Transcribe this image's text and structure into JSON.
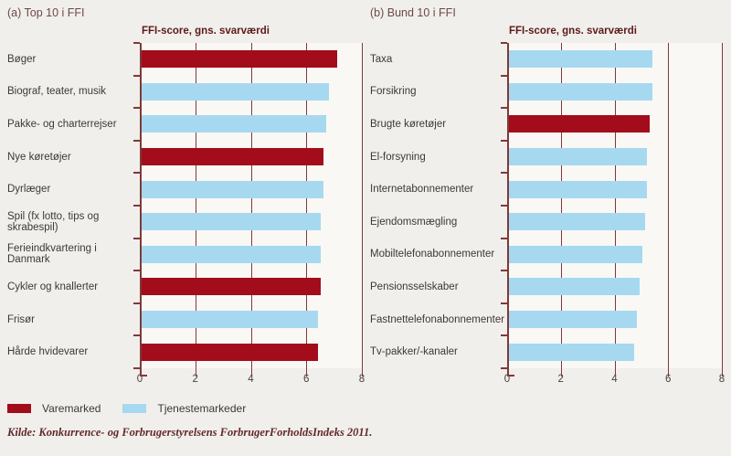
{
  "colors": {
    "vare": "#a20c1b",
    "tjeneste": "#a6d9ef",
    "grid": "#7e3a39",
    "page_background": "#f1efec",
    "plot_background": "#f9f8f5",
    "title_text": "#5c1a19"
  },
  "legend": {
    "items": [
      {
        "label": "Varemarked",
        "color_key": "vare"
      },
      {
        "label": "Tjenestemarkeder",
        "color_key": "tjeneste"
      }
    ]
  },
  "source": "Kilde: Konkurrence- og Forbrugerstyrelsens ForbrugerForholdsIndeks 2011.",
  "chart_data": [
    {
      "type": "bar",
      "orientation": "horizontal",
      "panel_label": "(a) Top 10 i FFI",
      "title": "FFI-score, gns. svarværdi",
      "xlim": [
        0,
        8
      ],
      "xticks": [
        0,
        2,
        4,
        6,
        8
      ],
      "grid": true,
      "categories": [
        "Bøger",
        "Biograf, teater, musik",
        "Pakke- og charterrejser",
        "Nye køretøjer",
        "Dyrlæger",
        "Spil (fx lotto, tips og skrabespil)",
        "Ferieindkvartering i Danmark",
        "Cykler og knallerter",
        "Frisør",
        "Hårde hvidevarer"
      ],
      "values": [
        7.1,
        6.8,
        6.7,
        6.6,
        6.6,
        6.5,
        6.5,
        6.5,
        6.4,
        6.4
      ],
      "series_keys": [
        "vare",
        "tjeneste",
        "tjeneste",
        "vare",
        "tjeneste",
        "tjeneste",
        "tjeneste",
        "vare",
        "tjeneste",
        "vare"
      ]
    },
    {
      "type": "bar",
      "orientation": "horizontal",
      "panel_label": "(b) Bund 10 i FFI",
      "title": "FFI-score, gns. svarværdi",
      "xlim": [
        0,
        8
      ],
      "xticks": [
        0,
        2,
        4,
        6,
        8
      ],
      "grid": true,
      "categories": [
        "Taxa",
        "Forsikring",
        "Brugte køretøjer",
        "El-forsyning",
        "Internetabonnementer",
        "Ejendomsmægling",
        "Mobiltelefonabonnementer",
        "Pensionsselskaber",
        "Fastnettelefonabonnementer",
        "Tv-pakker/-kanaler"
      ],
      "values": [
        5.4,
        5.4,
        5.3,
        5.2,
        5.2,
        5.1,
        5.0,
        4.9,
        4.8,
        4.7
      ],
      "series_keys": [
        "tjeneste",
        "tjeneste",
        "vare",
        "tjeneste",
        "tjeneste",
        "tjeneste",
        "tjeneste",
        "tjeneste",
        "tjeneste",
        "tjeneste"
      ]
    }
  ]
}
